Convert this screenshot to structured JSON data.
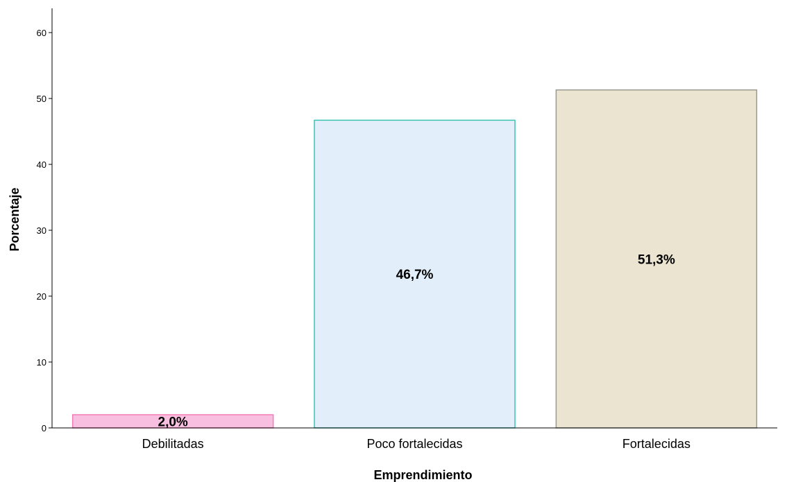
{
  "chart_data": {
    "type": "bar",
    "title": "",
    "xlabel": "Emprendimiento",
    "ylabel": "Porcentaje",
    "categories": [
      "Debilitadas",
      "Poco fortalecidas",
      "Fortalecidas"
    ],
    "values": [
      2.0,
      46.7,
      51.3
    ],
    "value_labels": [
      "2,0%",
      "46,7%",
      "51,3%"
    ],
    "ylim": [
      0,
      60
    ],
    "yticks": [
      0,
      10,
      20,
      30,
      40,
      50,
      60
    ],
    "ytick_labels": [
      "0",
      "10",
      "20",
      "30",
      "40",
      "50",
      "60"
    ],
    "grid": false,
    "legend": "none",
    "bar_fills": [
      "#f9bfe0",
      "#e2eef9",
      "#ebe4d0"
    ],
    "bar_strokes": [
      "#f27bb6",
      "#3cc3b4",
      "#9a9a90"
    ]
  }
}
